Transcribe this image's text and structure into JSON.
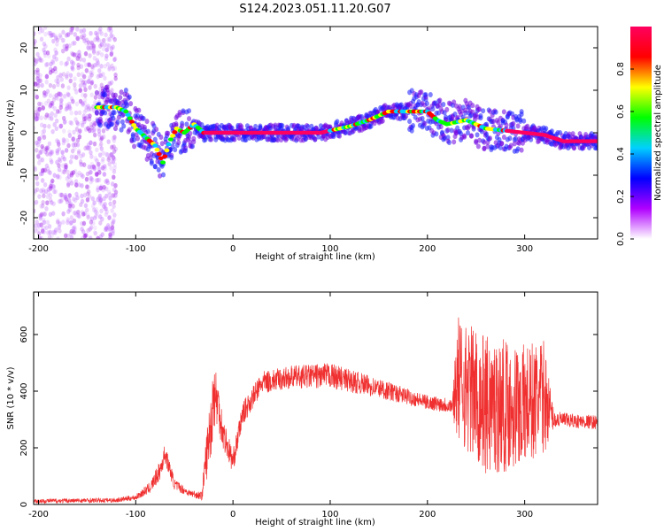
{
  "figure": {
    "title": "S124.2023.051.11.20.G07"
  },
  "chart_data": [
    {
      "type": "heatmap",
      "xlabel": "Height of straight line (km)",
      "ylabel": "Frequency (Hz)",
      "xlim": [
        -205,
        375
      ],
      "ylim": [
        -25,
        25
      ],
      "xticks": [
        -200,
        -100,
        0,
        100,
        200,
        300
      ],
      "yticks": [
        -20,
        -10,
        0,
        10,
        20
      ],
      "grid": false,
      "ridge": {
        "x": [
          -140,
          -120,
          -110,
          -100,
          -90,
          -80,
          -72,
          -65,
          -58,
          -50,
          -40,
          -30,
          0,
          50,
          90,
          100,
          120,
          140,
          160,
          180,
          200,
          210,
          220,
          240,
          260,
          280,
          300,
          320,
          340,
          375
        ],
        "y": [
          6,
          6,
          5,
          1,
          -1,
          -3,
          -7,
          -2,
          1,
          0,
          2,
          0,
          0,
          0,
          0,
          0.5,
          1.5,
          3,
          5,
          5,
          5,
          3,
          2,
          3,
          1,
          0.5,
          0,
          -0.5,
          -2,
          -2
        ]
      },
      "colorbar": {
        "label": "Normalized spectral amplitude",
        "range": [
          0,
          1
        ],
        "ticks": [
          0.0,
          0.2,
          0.4,
          0.6,
          0.8
        ],
        "colormap": [
          "#ffffff",
          "#b000ff",
          "#0000ff",
          "#00d0ff",
          "#00ff00",
          "#ffff00",
          "#ff0000",
          "#ff0060"
        ]
      }
    },
    {
      "type": "line",
      "xlabel": "Height of straight line (km)",
      "ylabel": "SNR (10 * v/v)",
      "xlim": [
        -205,
        375
      ],
      "ylim": [
        0,
        750
      ],
      "xticks": [
        -200,
        -100,
        0,
        100,
        200,
        300
      ],
      "yticks": [
        0,
        200,
        400,
        600
      ],
      "grid": false,
      "series": [
        {
          "color": "#f03030",
          "envelope": {
            "x": [
              -205,
              -120,
              -100,
              -85,
              -75,
              -70,
              -60,
              -45,
              -32,
              -28,
              -22,
              -20,
              -15,
              -10,
              0,
              10,
              30,
              60,
              100,
              150,
              200,
              226,
              230,
              260,
              300,
              320,
              330,
              350,
              375
            ],
            "y": [
              12,
              15,
              25,
              60,
              120,
              180,
              70,
              40,
              30,
              150,
              300,
              400,
              350,
              250,
              150,
              320,
              430,
              450,
              455,
              410,
              360,
              350,
              450,
              350,
              350,
              380,
              300,
              295,
              290
            ],
            "noise": [
              8,
              8,
              10,
              20,
              35,
              35,
              20,
              12,
              15,
              80,
              120,
              130,
              90,
              60,
              40,
              40,
              40,
              40,
              45,
              35,
              25,
              30,
              220,
              250,
              220,
              200,
              30,
              25,
              25
            ]
          }
        }
      ]
    }
  ]
}
